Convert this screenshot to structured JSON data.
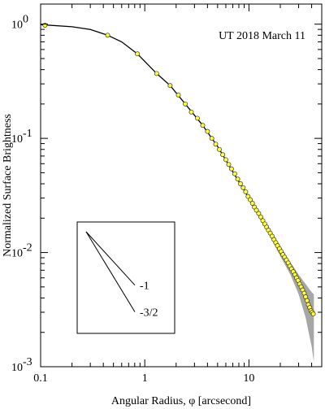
{
  "chart_data": {
    "type": "scatter",
    "title": "",
    "annotation": "UT 2018 March 11",
    "xlabel": "Angular Radius, φ [arcsecond]",
    "ylabel": "Normalized Surface Brightness",
    "xscale": "log",
    "yscale": "log",
    "xlim": [
      0.1,
      50
    ],
    "ylim": [
      0.001,
      1.5
    ],
    "x_ticks": [
      {
        "value": 0.1,
        "label": "0.1"
      },
      {
        "value": 1,
        "label": "1"
      },
      {
        "value": 10,
        "label": "10"
      }
    ],
    "y_ticks": [
      {
        "value": 1,
        "label": "10",
        "exp": "0"
      },
      {
        "value": 0.1,
        "label": "10",
        "exp": "-1"
      },
      {
        "value": 0.01,
        "label": "10",
        "exp": "-2"
      },
      {
        "value": 0.001,
        "label": "10",
        "exp": "-3"
      }
    ],
    "grid": false,
    "series": [
      {
        "kind": "markers",
        "marker_color": "#ffff33",
        "marker_edge": "#333333",
        "points": [
          {
            "x": 0.11,
            "y": 0.98
          },
          {
            "x": 0.44,
            "y": 0.8
          },
          {
            "x": 0.85,
            "y": 0.55
          },
          {
            "x": 1.3,
            "y": 0.37
          },
          {
            "x": 1.75,
            "y": 0.29
          },
          {
            "x": 2.1,
            "y": 0.24
          },
          {
            "x": 2.45,
            "y": 0.2
          },
          {
            "x": 2.8,
            "y": 0.17
          },
          {
            "x": 3.2,
            "y": 0.15
          },
          {
            "x": 3.6,
            "y": 0.13
          },
          {
            "x": 4.0,
            "y": 0.115
          },
          {
            "x": 4.4,
            "y": 0.1
          },
          {
            "x": 4.8,
            "y": 0.089
          },
          {
            "x": 5.2,
            "y": 0.08
          },
          {
            "x": 5.6,
            "y": 0.072
          },
          {
            "x": 6.0,
            "y": 0.065
          },
          {
            "x": 6.4,
            "y": 0.059
          },
          {
            "x": 6.8,
            "y": 0.054
          },
          {
            "x": 7.3,
            "y": 0.049
          },
          {
            "x": 7.8,
            "y": 0.044
          },
          {
            "x": 8.3,
            "y": 0.04
          },
          {
            "x": 8.8,
            "y": 0.037
          },
          {
            "x": 9.3,
            "y": 0.034
          },
          {
            "x": 9.8,
            "y": 0.031
          },
          {
            "x": 10.3,
            "y": 0.029
          },
          {
            "x": 10.8,
            "y": 0.027
          },
          {
            "x": 11.3,
            "y": 0.025
          },
          {
            "x": 11.8,
            "y": 0.0235
          },
          {
            "x": 12.4,
            "y": 0.022
          },
          {
            "x": 13.0,
            "y": 0.0205
          },
          {
            "x": 13.6,
            "y": 0.019
          },
          {
            "x": 14.2,
            "y": 0.0178
          },
          {
            "x": 14.8,
            "y": 0.0167
          },
          {
            "x": 15.4,
            "y": 0.0157
          },
          {
            "x": 16.0,
            "y": 0.0148
          },
          {
            "x": 16.7,
            "y": 0.0139
          },
          {
            "x": 17.4,
            "y": 0.013
          },
          {
            "x": 18.1,
            "y": 0.0122
          },
          {
            "x": 18.8,
            "y": 0.0115
          },
          {
            "x": 19.6,
            "y": 0.0108
          },
          {
            "x": 20.4,
            "y": 0.0102
          },
          {
            "x": 21.2,
            "y": 0.0096
          },
          {
            "x": 22.0,
            "y": 0.0091
          },
          {
            "x": 22.9,
            "y": 0.0086
          },
          {
            "x": 23.8,
            "y": 0.0081
          },
          {
            "x": 24.7,
            "y": 0.0076
          },
          {
            "x": 25.6,
            "y": 0.0072
          },
          {
            "x": 26.6,
            "y": 0.0068
          },
          {
            "x": 27.6,
            "y": 0.0064
          },
          {
            "x": 28.6,
            "y": 0.006
          },
          {
            "x": 29.6,
            "y": 0.0057
          },
          {
            "x": 30.6,
            "y": 0.0053
          },
          {
            "x": 31.7,
            "y": 0.005
          },
          {
            "x": 32.8,
            "y": 0.0047
          },
          {
            "x": 33.9,
            "y": 0.0044
          },
          {
            "x": 35.0,
            "y": 0.0041
          },
          {
            "x": 36.1,
            "y": 0.0038
          },
          {
            "x": 37.2,
            "y": 0.0035
          },
          {
            "x": 38.3,
            "y": 0.0033
          },
          {
            "x": 39.4,
            "y": 0.0031
          },
          {
            "x": 40.5,
            "y": 0.003
          },
          {
            "x": 41.5,
            "y": 0.0029
          }
        ]
      },
      {
        "kind": "line",
        "color": "#000000",
        "points": [
          {
            "x": 0.1,
            "y": 0.99
          },
          {
            "x": 0.2,
            "y": 0.95
          },
          {
            "x": 0.3,
            "y": 0.9
          },
          {
            "x": 0.44,
            "y": 0.8
          },
          {
            "x": 0.6,
            "y": 0.7
          },
          {
            "x": 0.85,
            "y": 0.55
          },
          {
            "x": 1.3,
            "y": 0.37
          },
          {
            "x": 1.75,
            "y": 0.29
          },
          {
            "x": 2.45,
            "y": 0.2
          },
          {
            "x": 3.6,
            "y": 0.13
          },
          {
            "x": 5.0,
            "y": 0.085
          },
          {
            "x": 7.0,
            "y": 0.051
          },
          {
            "x": 10.0,
            "y": 0.03
          },
          {
            "x": 14.0,
            "y": 0.018
          },
          {
            "x": 20.0,
            "y": 0.0105
          },
          {
            "x": 28.0,
            "y": 0.0062
          },
          {
            "x": 35.0,
            "y": 0.0041
          },
          {
            "x": 41.5,
            "y": 0.0029
          }
        ]
      },
      {
        "kind": "band",
        "color": "#a6a6a6",
        "points": [
          {
            "x": 10,
            "lo": 0.0285,
            "hi": 0.0315
          },
          {
            "x": 13,
            "lo": 0.0193,
            "hi": 0.0218
          },
          {
            "x": 16,
            "lo": 0.0138,
            "hi": 0.0158
          },
          {
            "x": 20,
            "lo": 0.0093,
            "hi": 0.0114
          },
          {
            "x": 25,
            "lo": 0.0064,
            "hi": 0.0082
          },
          {
            "x": 30,
            "lo": 0.0043,
            "hi": 0.0064
          },
          {
            "x": 35,
            "lo": 0.0027,
            "hi": 0.0053
          },
          {
            "x": 40,
            "lo": 0.0015,
            "hi": 0.0045
          },
          {
            "x": 42,
            "lo": 0.0011,
            "hi": 0.0043
          }
        ]
      }
    ],
    "inset": {
      "lines": [
        {
          "slope": -1,
          "label": "-1"
        },
        {
          "slope": -1.5,
          "label": "-3/2"
        }
      ]
    }
  }
}
